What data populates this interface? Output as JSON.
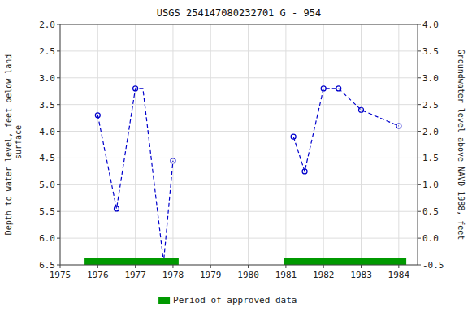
{
  "chart_data": {
    "type": "line",
    "title": "USGS 254147080232701 G  - 954",
    "y_label": "Depth to water level, feet below land\n surface",
    "y2_label": "Groundwater level above NAVD 1988, feet",
    "xlim": [
      1975,
      1984.5
    ],
    "xticks": [
      1975,
      1976,
      1977,
      1978,
      1979,
      1980,
      1981,
      1982,
      1983,
      1984
    ],
    "ylim": [
      6.5,
      2.0
    ],
    "yticks": [
      {
        "value": 2.0,
        "label": "2.0"
      },
      2.5,
      {
        "value": 3.0,
        "label": "3.0"
      },
      3.5,
      {
        "value": 4.0,
        "label": "4.0"
      },
      4.5,
      {
        "value": 5.0,
        "label": "5.0"
      },
      5.5,
      {
        "value": 6.0,
        "label": "6.0"
      },
      6.5
    ],
    "y2lim": [
      -0.5,
      4.0
    ],
    "y2ticks": [
      {
        "value": 4.0,
        "label": "4.0"
      },
      3.5,
      {
        "value": 3.0,
        "label": "3.0"
      },
      2.5,
      {
        "value": 2.0,
        "label": "2.0"
      },
      1.5,
      {
        "value": 1.0,
        "label": "1.0"
      },
      0.5,
      {
        "value": 0.0,
        "label": "0.0"
      },
      -0.5
    ],
    "grid": true,
    "legend": "bottom",
    "series": [
      {
        "type": "line",
        "line_style": "dashed",
        "color": "#0000cc",
        "x": [
          1976.0,
          1976.5,
          1977.0,
          1977.2,
          1977.75,
          1978.0
        ],
        "values": [
          3.7,
          5.45,
          3.2,
          3.2,
          6.45,
          4.55
        ]
      },
      {
        "type": "line",
        "line_style": "dashed",
        "color": "#0000cc",
        "x": [
          1981.2,
          1981.5,
          1982.0,
          1982.4,
          1983.0,
          1984.0
        ],
        "values": [
          4.1,
          4.75,
          3.2,
          3.2,
          3.6,
          3.9
        ]
      },
      {
        "type": "scatter",
        "marker": "circle-open",
        "color": "#0000cc",
        "x": [
          1976.0,
          1976.5,
          1977.0,
          1977.75,
          1978.0,
          1981.2,
          1981.5,
          1982.0,
          1982.4,
          1983.0,
          1984.0
        ],
        "values": [
          3.7,
          5.45,
          3.2,
          6.45,
          4.55,
          4.1,
          4.75,
          3.2,
          3.2,
          3.6,
          3.9
        ]
      },
      {
        "type": "span",
        "name": "Period of approved data",
        "color": "#009900",
        "start": [
          1975.65,
          1980.95
        ],
        "end": [
          1978.15,
          1984.2
        ]
      }
    ]
  }
}
